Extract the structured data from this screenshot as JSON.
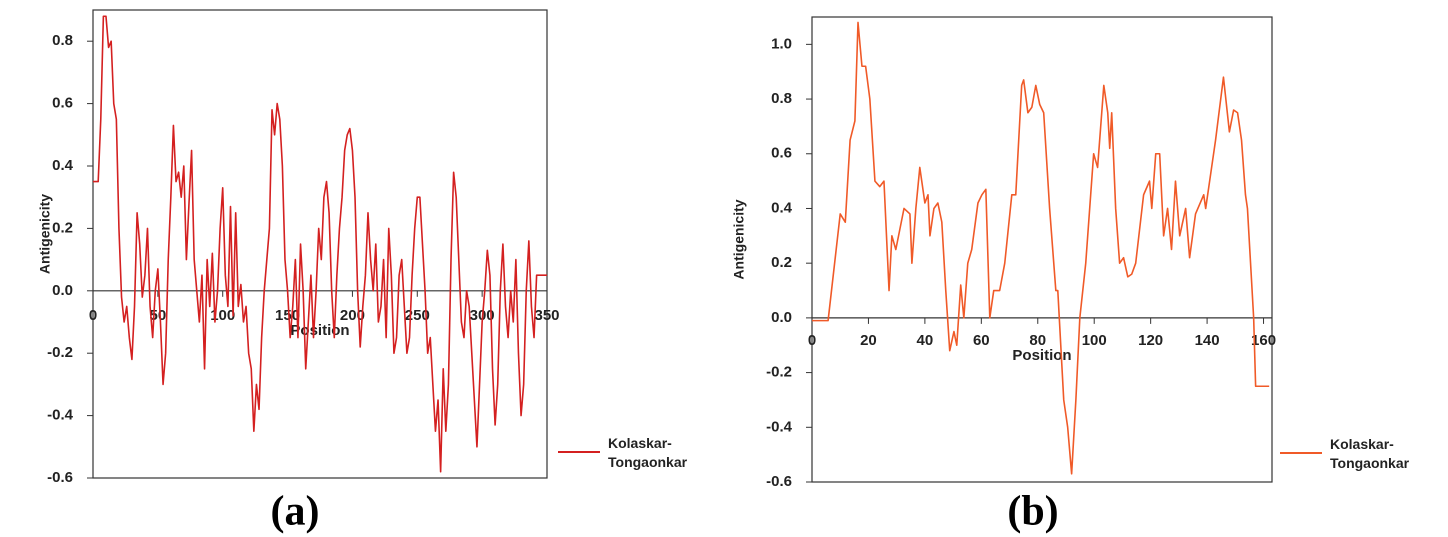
{
  "chart_data": [
    {
      "type": "line",
      "panel_label": "(a)",
      "x_label": "Position",
      "y_label": "Antigenicity",
      "x": [
        0,
        2,
        4,
        6,
        8,
        10,
        12,
        14,
        16,
        18,
        20,
        22,
        24,
        26,
        28,
        30,
        32,
        34,
        36,
        38,
        40,
        42,
        44,
        46,
        48,
        50,
        52,
        54,
        56,
        58,
        60,
        62,
        64,
        66,
        68,
        70,
        72,
        74,
        76,
        78,
        80,
        82,
        84,
        86,
        88,
        90,
        92,
        94,
        96,
        98,
        100,
        102,
        104,
        106,
        108,
        110,
        112,
        114,
        116,
        118,
        120,
        122,
        124,
        126,
        128,
        130,
        132,
        134,
        136,
        138,
        140,
        142,
        144,
        146,
        148,
        150,
        152,
        154,
        156,
        158,
        160,
        162,
        164,
        166,
        168,
        170,
        172,
        174,
        176,
        178,
        180,
        182,
        184,
        186,
        188,
        190,
        192,
        194,
        196,
        198,
        200,
        202,
        204,
        206,
        208,
        210,
        212,
        214,
        216,
        218,
        220,
        222,
        224,
        226,
        228,
        230,
        232,
        234,
        236,
        238,
        240,
        242,
        244,
        246,
        248,
        250,
        252,
        254,
        256,
        258,
        260,
        262,
        264,
        266,
        268,
        270,
        272,
        274,
        276,
        278,
        280,
        282,
        284,
        286,
        288,
        290,
        292,
        294,
        296,
        298,
        300,
        302,
        304,
        306,
        308,
        310,
        312,
        314,
        316,
        318,
        320,
        322,
        324,
        326,
        328,
        330,
        332,
        334,
        336,
        338,
        340,
        342,
        344,
        346,
        348,
        350
      ],
      "series": [
        {
          "name": "Kolaskar-Tongaonkar",
          "color": "#d42020",
          "values": [
            0.35,
            0.35,
            0.35,
            0.55,
            0.88,
            0.88,
            0.78,
            0.8,
            0.6,
            0.55,
            0.2,
            -0.02,
            -0.1,
            -0.05,
            -0.15,
            -0.22,
            -0.05,
            0.25,
            0.15,
            -0.02,
            0.05,
            0.2,
            -0.05,
            -0.15,
            0,
            0.07,
            -0.1,
            -0.3,
            -0.2,
            0.1,
            0.3,
            0.53,
            0.35,
            0.38,
            0.3,
            0.4,
            0.1,
            0.28,
            0.45,
            0.1,
            0,
            -0.1,
            0.05,
            -0.25,
            0.1,
            -0.05,
            0.12,
            -0.1,
            0,
            0.2,
            0.33,
            0.05,
            -0.05,
            0.27,
            -0.08,
            0.25,
            -0.05,
            0.02,
            -0.1,
            -0.05,
            -0.2,
            -0.25,
            -0.45,
            -0.3,
            -0.38,
            -0.15,
            0,
            0.1,
            0.2,
            0.58,
            0.5,
            0.6,
            0.55,
            0.4,
            0.1,
            0,
            -0.15,
            -0.05,
            0.1,
            -0.15,
            0.15,
            0,
            -0.25,
            -0.1,
            0.05,
            -0.15,
            0,
            0.2,
            0.1,
            0.3,
            0.35,
            0.25,
            0,
            -0.15,
            0.05,
            0.2,
            0.3,
            0.45,
            0.5,
            0.52,
            0.45,
            0.3,
            0,
            -0.18,
            -0.05,
            0.05,
            0.25,
            0.1,
            0,
            0.15,
            -0.1,
            -0.05,
            0.1,
            -0.15,
            0.2,
            0.05,
            -0.2,
            -0.15,
            0.05,
            0.1,
            -0.05,
            -0.2,
            -0.15,
            0.05,
            0.2,
            0.3,
            0.3,
            0.15,
            0,
            -0.2,
            -0.15,
            -0.3,
            -0.45,
            -0.35,
            -0.58,
            -0.25,
            -0.45,
            -0.3,
            0.1,
            0.38,
            0.3,
            0.1,
            -0.1,
            -0.15,
            0,
            -0.05,
            -0.2,
            -0.35,
            -0.5,
            -0.3,
            -0.1,
            0,
            0.13,
            0.05,
            -0.25,
            -0.43,
            -0.3,
            0,
            0.15,
            -0.05,
            -0.15,
            0,
            -0.1,
            0.1,
            -0.2,
            -0.4,
            -0.3,
            0,
            0.16,
            -0.05,
            -0.15,
            0.05,
            0.05,
            0.05,
            0.05,
            0.05
          ]
        }
      ],
      "xlim": [
        0,
        350
      ],
      "xticks": [
        0,
        50,
        100,
        150,
        200,
        250,
        300,
        350
      ],
      "ylim": [
        -0.6,
        0.9
      ],
      "yticks": [
        -0.6,
        -0.4,
        -0.2,
        {
          "value": 0,
          "label": "0.0"
        },
        0.2,
        0.4,
        0.6,
        0.8
      ]
    },
    {
      "type": "line",
      "panel_label": "(b)",
      "x_label": "Position",
      "y_label": "Antigenicity",
      "x": [
        0,
        5.7,
        10,
        11.8,
        13.5,
        15.2,
        16.3,
        17.7,
        19,
        20.5,
        22.3,
        24,
        25.5,
        27.3,
        28.3,
        29.7,
        32.6,
        34.7,
        35.4,
        36.8,
        38.2,
        40,
        41.1,
        41.8,
        43.2,
        44.6,
        46,
        47.4,
        48.8,
        50.3,
        51.3,
        52.7,
        53.8,
        55.2,
        56.6,
        58.8,
        60.2,
        61.6,
        63,
        64.4,
        66.5,
        68.3,
        70.8,
        72.2,
        74.3,
        75,
        76.5,
        77.9,
        79.3,
        80.7,
        82.1,
        84.2,
        86.4,
        87.1,
        89.2,
        90.6,
        92,
        93.5,
        94.9,
        97,
        99.8,
        101.2,
        103.4,
        104.8,
        105.5,
        106.2,
        107.6,
        109,
        110.4,
        111.9,
        113.3,
        114.7,
        117.5,
        119.6,
        120.4,
        121.8,
        123.2,
        124.6,
        126,
        127.4,
        128.8,
        130.3,
        132.4,
        133.8,
        135.9,
        138.8,
        139.5,
        141.6,
        143,
        145.8,
        147.9,
        149.4,
        150.8,
        152.2,
        153.6,
        154.3,
        156.5,
        157.2,
        162
      ],
      "series": [
        {
          "name": "Kolaskar-Tongaonkar",
          "color": "#f05a28",
          "values": [
            -0.01,
            -0.01,
            0.38,
            0.35,
            0.65,
            0.72,
            1.08,
            0.92,
            0.92,
            0.8,
            0.5,
            0.48,
            0.5,
            0.1,
            0.3,
            0.25,
            0.4,
            0.38,
            0.2,
            0.4,
            0.55,
            0.42,
            0.45,
            0.3,
            0.4,
            0.42,
            0.35,
            0.1,
            -0.12,
            -0.05,
            -0.1,
            0.12,
            0,
            0.2,
            0.25,
            0.42,
            0.45,
            0.47,
            0,
            0.1,
            0.1,
            0.2,
            0.45,
            0.45,
            0.85,
            0.87,
            0.75,
            0.77,
            0.85,
            0.78,
            0.75,
            0.4,
            0.1,
            0.1,
            -0.3,
            -0.4,
            -0.57,
            -0.3,
            0,
            0.2,
            0.6,
            0.55,
            0.85,
            0.75,
            0.62,
            0.75,
            0.4,
            0.2,
            0.22,
            0.15,
            0.16,
            0.2,
            0.45,
            0.5,
            0.4,
            0.6,
            0.6,
            0.3,
            0.4,
            0.25,
            0.5,
            0.3,
            0.4,
            0.22,
            0.38,
            0.45,
            0.4,
            0.55,
            0.65,
            0.88,
            0.68,
            0.76,
            0.75,
            0.65,
            0.45,
            0.4,
            0,
            -0.25,
            -0.25
          ]
        }
      ],
      "xlim": [
        0,
        163
      ],
      "xticks": [
        0,
        20,
        40,
        60,
        80,
        100,
        120,
        140,
        160
      ],
      "ylim": [
        -0.6,
        1.1
      ],
      "yticks": [
        -0.6,
        -0.4,
        -0.2,
        {
          "value": 0,
          "label": "0.0"
        },
        0.2,
        0.4,
        0.6,
        0.8,
        {
          "value": 1,
          "label": "1.0"
        }
      ]
    }
  ]
}
